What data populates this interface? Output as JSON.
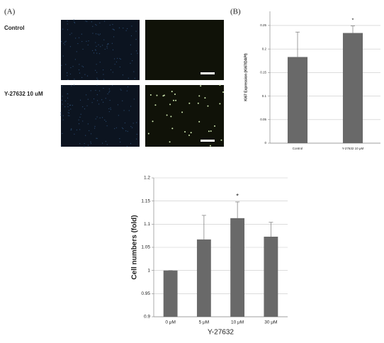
{
  "figure": {
    "panel_a": "(A)",
    "panel_b": "(B)",
    "rows": [
      "Control",
      "Y-27632 10 uM"
    ]
  },
  "chart_data": [
    {
      "type": "bar",
      "y_label": "Ki67 Expression (Ki67/DAPI)",
      "categories": [
        "Control",
        "Y-27632 10 μM"
      ],
      "values": [
        0.183,
        0.234
      ],
      "errors": [
        0.053,
        0.015
      ],
      "color": "#696969",
      "ylim": [
        0,
        0.28
      ],
      "yticks": [
        0,
        0.05,
        0.1,
        0.15,
        0.2,
        0.25
      ],
      "grid": true,
      "annotations": [
        {
          "text": "*",
          "category": "Y-27632 10 μM"
        }
      ]
    },
    {
      "type": "bar",
      "y_label": "Cell numbers (fold)",
      "x_label": "Y-27632",
      "categories": [
        "0 μM",
        "5 μM",
        "10 μM",
        "30 μM"
      ],
      "values": [
        1.0,
        1.067,
        1.113,
        1.073
      ],
      "errors": [
        0,
        0.052,
        0.035,
        0.031
      ],
      "color": "#696969",
      "ylim": [
        0.9,
        1.2
      ],
      "yticks": [
        0.9,
        0.95,
        1,
        1.05,
        1.1,
        1.15,
        1.2
      ],
      "grid": true,
      "annotations": [
        {
          "text": "*",
          "category": "10 μM"
        }
      ]
    }
  ]
}
